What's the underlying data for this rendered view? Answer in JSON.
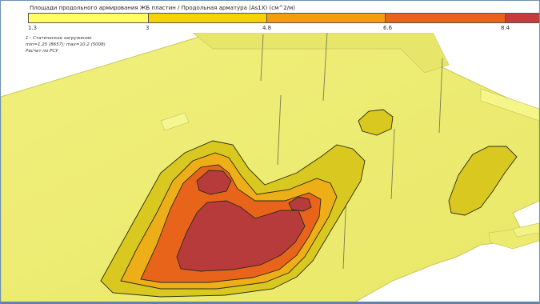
{
  "legend": {
    "title": "Площади продольного армирования ЖБ пластин / Продольная арматура (As1X) (см^2/м)",
    "colors": [
      "#ffff66",
      "#f6d300",
      "#f49c11",
      "#e8641a",
      "#c43c3c"
    ],
    "ticks": [
      "1.3",
      "3",
      "4.8",
      "6.6",
      "8.4"
    ]
  },
  "info": {
    "line1": "1 - Статическое загружение",
    "line2": "min=1.25 (8657); max=10.2 (5008)",
    "line3": "Расчет по РСУ"
  },
  "scene": {
    "plate_color": "#eeee72",
    "zone_colors": {
      "level1": "#d9c820",
      "level2": "#eeae18",
      "level3": "#e8641a",
      "level4": "#b83b3b"
    }
  }
}
